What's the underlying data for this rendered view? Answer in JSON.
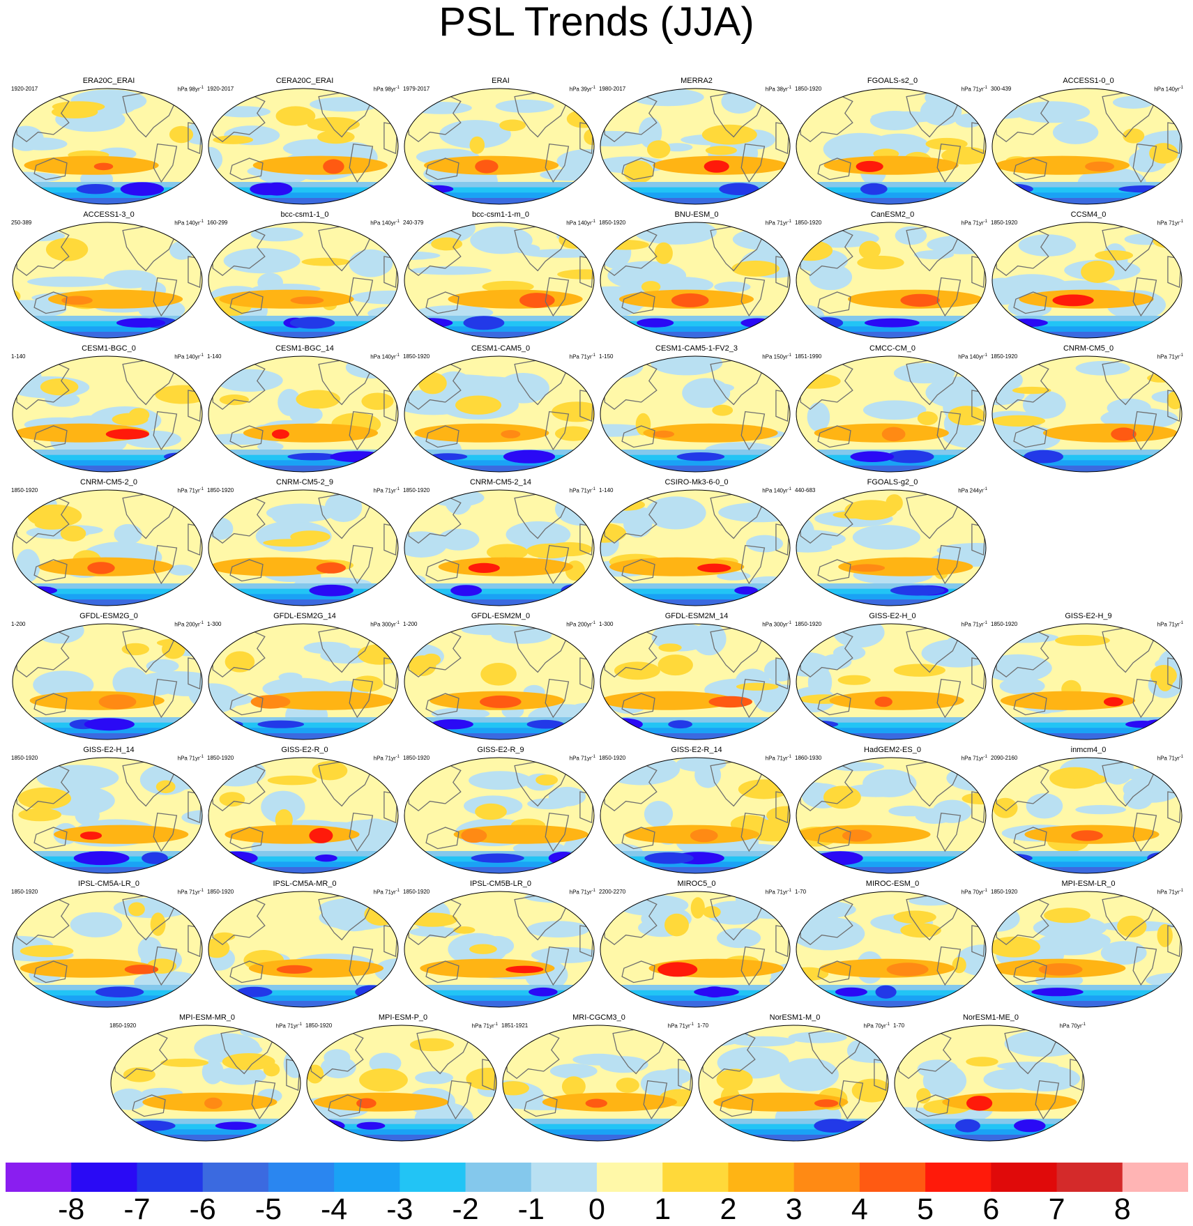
{
  "title": "PSL Trends (JJA)",
  "chart_data": {
    "type": "heatmap",
    "title": "PSL Trends (JJA)",
    "projection": "global map panels",
    "colorbar": {
      "levels": [
        -8,
        -7,
        -6,
        -5,
        -4,
        -3,
        -2,
        -1,
        0,
        1,
        2,
        3,
        4,
        5,
        6,
        7,
        8
      ],
      "labels": [
        "-8",
        "-7",
        "-6",
        "-5",
        "-4",
        "-3",
        "-2",
        "-1",
        "0",
        "1",
        "2",
        "3",
        "4",
        "5",
        "6",
        "7",
        "8"
      ],
      "colors": [
        "#8a1ef0",
        "#2a0af5",
        "#2239e8",
        "#3b6ae0",
        "#2a86f0",
        "#1aa2f5",
        "#22c4f5",
        "#84c8ec",
        "#b9e0f2",
        "#fff8a8",
        "#ffd93a",
        "#ffb414",
        "#ff8a14",
        "#ff5a12",
        "#ff1a0a",
        "#e00a0a",
        "#d42a2a",
        "#ffb4b4"
      ]
    },
    "panels": [
      {
        "name": "ERA20C_ERAI",
        "years": "1920-2017",
        "units": "hPa 98yr",
        "pattern": 0
      },
      {
        "name": "CERA20C_ERAI",
        "years": "1920-2017",
        "units": "hPa 98yr",
        "pattern": 1
      },
      {
        "name": "ERAI",
        "years": "1979-2017",
        "units": "hPa 39yr",
        "pattern": 2
      },
      {
        "name": "MERRA2",
        "years": "1980-2017",
        "units": "hPa 38yr",
        "pattern": 3
      },
      {
        "name": "FGOALS-s2_0",
        "years": "1850-1920",
        "units": "hPa 71yr",
        "pattern": 4
      },
      {
        "name": "ACCESS1-0_0",
        "years": "300-439",
        "units": "hPa 140yr",
        "pattern": 5
      },
      {
        "name": "ACCESS1-3_0",
        "years": "250-389",
        "units": "hPa 140yr",
        "pattern": 6
      },
      {
        "name": "bcc-csm1-1_0",
        "years": "160-299",
        "units": "hPa 140yr",
        "pattern": 7
      },
      {
        "name": "bcc-csm1-1-m_0",
        "years": "240-379",
        "units": "hPa 140yr",
        "pattern": 8
      },
      {
        "name": "BNU-ESM_0",
        "years": "1850-1920",
        "units": "hPa 71yr",
        "pattern": 9
      },
      {
        "name": "CanESM2_0",
        "years": "1850-1920",
        "units": "hPa 71yr",
        "pattern": 10
      },
      {
        "name": "CCSM4_0",
        "years": "1850-1920",
        "units": "hPa 71yr",
        "pattern": 11
      },
      {
        "name": "CESM1-BGC_0",
        "years": "1-140",
        "units": "hPa 140yr",
        "pattern": 12
      },
      {
        "name": "CESM1-BGC_14",
        "years": "1-140",
        "units": "hPa 140yr",
        "pattern": 13
      },
      {
        "name": "CESM1-CAM5_0",
        "years": "1850-1920",
        "units": "hPa 71yr",
        "pattern": 14
      },
      {
        "name": "CESM1-CAM5-1-FV2_3",
        "years": "1-150",
        "units": "hPa 150yr",
        "pattern": 15
      },
      {
        "name": "CMCC-CM_0",
        "years": "1851-1990",
        "units": "hPa 140yr",
        "pattern": 16
      },
      {
        "name": "CNRM-CM5_0",
        "years": "1850-1920",
        "units": "hPa 71yr",
        "pattern": 17
      },
      {
        "name": "CNRM-CM5-2_0",
        "years": "1850-1920",
        "units": "hPa 71yr",
        "pattern": 18
      },
      {
        "name": "CNRM-CM5-2_9",
        "years": "1850-1920",
        "units": "hPa 71yr",
        "pattern": 19
      },
      {
        "name": "CNRM-CM5-2_14",
        "years": "1850-1920",
        "units": "hPa 71yr",
        "pattern": 20
      },
      {
        "name": "CSIRO-Mk3-6-0_0",
        "years": "1-140",
        "units": "hPa 140yr",
        "pattern": 21
      },
      {
        "name": "FGOALS-g2_0",
        "years": "440-683",
        "units": "hPa 244yr",
        "pattern": 22
      },
      {
        "name": "GFDL-ESM2G_0",
        "years": "1-200",
        "units": "hPa 200yr",
        "pattern": 23
      },
      {
        "name": "GFDL-ESM2G_14",
        "years": "1-300",
        "units": "hPa 300yr",
        "pattern": 24
      },
      {
        "name": "GFDL-ESM2M_0",
        "years": "1-200",
        "units": "hPa 200yr",
        "pattern": 25
      },
      {
        "name": "GFDL-ESM2M_14",
        "years": "1-300",
        "units": "hPa 300yr",
        "pattern": 26
      },
      {
        "name": "GISS-E2-H_0",
        "years": "1850-1920",
        "units": "hPa 71yr",
        "pattern": 27
      },
      {
        "name": "GISS-E2-H_9",
        "years": "1850-1920",
        "units": "hPa 71yr",
        "pattern": 28
      },
      {
        "name": "GISS-E2-H_14",
        "years": "1850-1920",
        "units": "hPa 71yr",
        "pattern": 29
      },
      {
        "name": "GISS-E2-R_0",
        "years": "1850-1920",
        "units": "hPa 71yr",
        "pattern": 30
      },
      {
        "name": "GISS-E2-R_9",
        "years": "1850-1920",
        "units": "hPa 71yr",
        "pattern": 31
      },
      {
        "name": "GISS-E2-R_14",
        "years": "1850-1920",
        "units": "hPa 71yr",
        "pattern": 32
      },
      {
        "name": "HadGEM2-ES_0",
        "years": "1860-1930",
        "units": "hPa 71yr",
        "pattern": 33
      },
      {
        "name": "inmcm4_0",
        "years": "2090-2160",
        "units": "hPa 71yr",
        "pattern": 34
      },
      {
        "name": "IPSL-CM5A-LR_0",
        "years": "1850-1920",
        "units": "hPa 71yr",
        "pattern": 35
      },
      {
        "name": "IPSL-CM5A-MR_0",
        "years": "1850-1920",
        "units": "hPa 71yr",
        "pattern": 36
      },
      {
        "name": "IPSL-CM5B-LR_0",
        "years": "1850-1920",
        "units": "hPa 71yr",
        "pattern": 37
      },
      {
        "name": "MIROC5_0",
        "years": "2200-2270",
        "units": "hPa 71yr",
        "pattern": 38
      },
      {
        "name": "MIROC-ESM_0",
        "years": "1-70",
        "units": "hPa 70yr",
        "pattern": 39
      },
      {
        "name": "MPI-ESM-LR_0",
        "years": "1850-1920",
        "units": "hPa 71yr",
        "pattern": 40
      },
      {
        "name": "MPI-ESM-MR_0",
        "years": "1850-1920",
        "units": "hPa 71yr",
        "pattern": 41
      },
      {
        "name": "MPI-ESM-P_0",
        "years": "1850-1920",
        "units": "hPa 71yr",
        "pattern": 42
      },
      {
        "name": "MRI-CGCM3_0",
        "years": "1851-1921",
        "units": "hPa 71yr",
        "pattern": 43
      },
      {
        "name": "NorESM1-M_0",
        "years": "1-70",
        "units": "hPa 70yr",
        "pattern": 44
      },
      {
        "name": "NorESM1-ME_0",
        "years": "1-70",
        "units": "hPa 70yr",
        "pattern": 45
      }
    ]
  }
}
